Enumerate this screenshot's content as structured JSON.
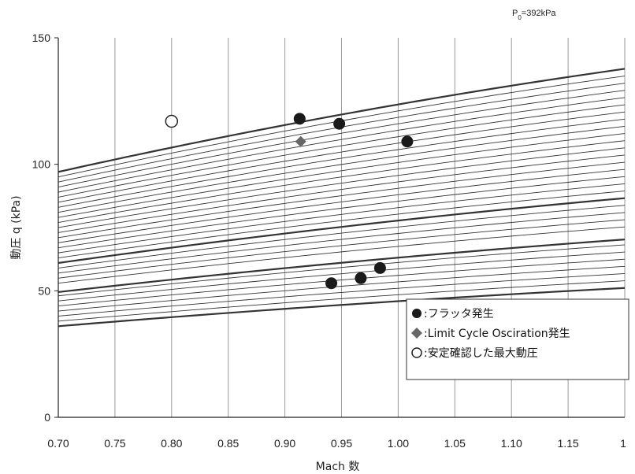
{
  "chart_data": {
    "type": "scatter",
    "xlabel": "Mach 数",
    "ylabel": "動圧 q (kPa)",
    "xlim": [
      0.7,
      1.2
    ],
    "ylim": [
      0,
      150
    ],
    "x_ticks": [
      "0.70",
      "0.75",
      "0.80",
      "0.85",
      "0.90",
      "0.95",
      "1.00",
      "1.05",
      "1.10",
      "1.15",
      "1"
    ],
    "y_ticks": [
      "0",
      "50",
      "100",
      "150"
    ],
    "x_grid": true,
    "y_grid": false,
    "annotation": {
      "prefix": "P",
      "subscript": "0",
      "suffix": "=392kPa"
    },
    "pressure_curves_q_at_mach_0_70": [
      36,
      38,
      40,
      42,
      44,
      46,
      48,
      49.5,
      53,
      55,
      57,
      59,
      61,
      63,
      65,
      67,
      69,
      71,
      73,
      75,
      77,
      79,
      81,
      83,
      85,
      87,
      89,
      91,
      93,
      95,
      97
    ],
    "emphasized_curve_q_at_mach_0_70": [
      36,
      49.5,
      61,
      74,
      86,
      97
    ],
    "series": [
      {
        "name": "フラッタ発生",
        "marker": "filled-circle",
        "points": [
          [
            0.913,
            118
          ],
          [
            0.948,
            116
          ],
          [
            1.008,
            109
          ],
          [
            0.941,
            53
          ],
          [
            0.967,
            55
          ],
          [
            0.984,
            59
          ]
        ]
      },
      {
        "name": "Limit Cycle Osciration発生",
        "marker": "filled-diamond",
        "points": [
          [
            0.914,
            109
          ]
        ]
      },
      {
        "name": "安定確認した最大動圧",
        "marker": "open-circle",
        "points": [
          [
            0.8,
            117
          ]
        ]
      }
    ],
    "legend": {
      "placement": "lower-right",
      "items": [
        {
          "symbol": "●",
          "separator": ":",
          "label": "フラッタ発生"
        },
        {
          "symbol": "◆",
          "separator": ":",
          "label": "Limit Cycle Osciration発生"
        },
        {
          "symbol": "○",
          "separator": ":",
          "label": "安定確認した最大動圧"
        }
      ]
    },
    "colors": {
      "curve": "#333333",
      "grid": "#999999",
      "flutter_marker": "#1a1a1a",
      "lco_marker": "#666666",
      "open_marker": "#222222"
    }
  }
}
